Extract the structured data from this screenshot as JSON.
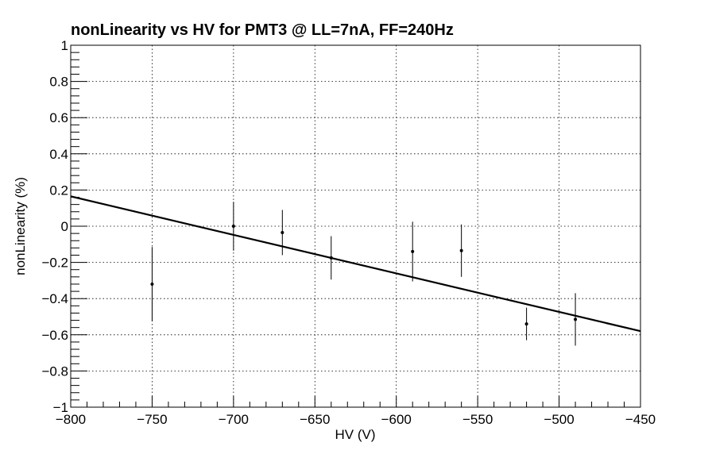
{
  "chart_data": {
    "type": "scatter",
    "title": "nonLinearity vs HV for  PMT3 @ LL=7nA, FF=240Hz",
    "xlabel": "HV (V)",
    "ylabel": "nonLinearity (%)",
    "xlim": [
      -800,
      -450
    ],
    "ylim": [
      -1,
      1
    ],
    "grid": true,
    "x_ticks": [
      -800,
      -750,
      -700,
      -650,
      -600,
      -550,
      -500,
      -450
    ],
    "x_tick_labels": [
      "−800",
      "−750",
      "−700",
      "−650",
      "−600",
      "−550",
      "−500",
      "−450"
    ],
    "y_ticks": [
      -1,
      -0.8,
      -0.6,
      -0.4,
      -0.2,
      0,
      0.2,
      0.4,
      0.6,
      0.8,
      1
    ],
    "y_tick_labels": [
      "−1",
      "−0.8",
      "−0.6",
      "−0.4",
      "−0.2",
      "0",
      "0.2",
      "0.4",
      "0.6",
      "0.8",
      "1"
    ],
    "points": [
      {
        "x": -750,
        "y": -0.32,
        "yerr_low": 0.205,
        "yerr_high": 0.205
      },
      {
        "x": -700,
        "y": 0.0,
        "yerr_low": 0.135,
        "yerr_high": 0.135
      },
      {
        "x": -670,
        "y": -0.035,
        "yerr_low": 0.125,
        "yerr_high": 0.125
      },
      {
        "x": -640,
        "y": -0.175,
        "yerr_low": 0.12,
        "yerr_high": 0.12
      },
      {
        "x": -590,
        "y": -0.14,
        "yerr_low": 0.165,
        "yerr_high": 0.165
      },
      {
        "x": -560,
        "y": -0.135,
        "yerr_low": 0.145,
        "yerr_high": 0.145
      },
      {
        "x": -520,
        "y": -0.54,
        "yerr_low": 0.09,
        "yerr_high": 0.09
      },
      {
        "x": -490,
        "y": -0.515,
        "yerr_low": 0.145,
        "yerr_high": 0.145
      }
    ],
    "fit_line": {
      "x": [
        -800,
        -450
      ],
      "y": [
        0.165,
        -0.58
      ]
    }
  }
}
